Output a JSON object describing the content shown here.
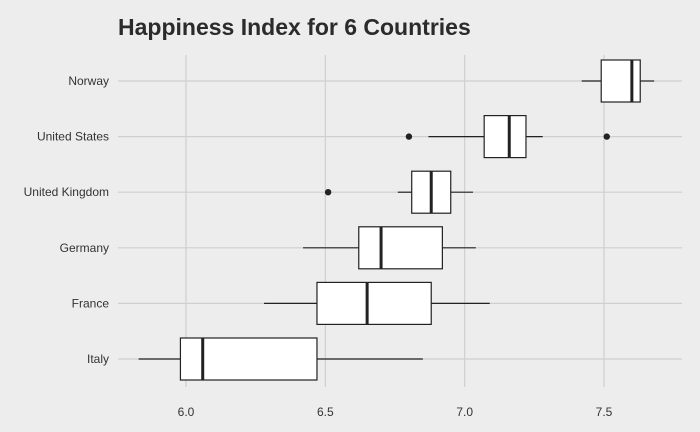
{
  "chart_data": {
    "type": "boxplot",
    "title": "Happiness Index for 6 Countries",
    "xlabel": "",
    "ylabel": "",
    "orientation": "horizontal",
    "xlim": [
      5.8,
      7.8
    ],
    "xticks": [
      6.0,
      6.5,
      7.0,
      7.5
    ],
    "xtick_labels": [
      "6.0",
      "6.5",
      "7.0",
      "7.5"
    ],
    "grid": true,
    "background": "#ededed",
    "grid_color": "#cfcfcf",
    "box_fill": "#ffffff",
    "line_color": "#222222",
    "categories": [
      "Norway",
      "United States",
      "United Kingdom",
      "Germany",
      "France",
      "Italy"
    ],
    "boxes": [
      {
        "category": "Norway",
        "whisker_low": 7.42,
        "q1": 7.49,
        "median": 7.6,
        "q3": 7.63,
        "whisker_high": 7.68,
        "outliers": []
      },
      {
        "category": "United States",
        "whisker_low": 6.87,
        "q1": 7.07,
        "median": 7.16,
        "q3": 7.22,
        "whisker_high": 7.28,
        "outliers": [
          6.8,
          7.51
        ]
      },
      {
        "category": "United Kingdom",
        "whisker_low": 6.76,
        "q1": 6.81,
        "median": 6.88,
        "q3": 6.95,
        "whisker_high": 7.03,
        "outliers": [
          6.51
        ]
      },
      {
        "category": "Germany",
        "whisker_low": 6.42,
        "q1": 6.62,
        "median": 6.7,
        "q3": 6.92,
        "whisker_high": 7.04,
        "outliers": []
      },
      {
        "category": "France",
        "whisker_low": 6.28,
        "q1": 6.47,
        "median": 6.65,
        "q3": 6.88,
        "whisker_high": 7.09,
        "outliers": []
      },
      {
        "category": "Italy",
        "whisker_low": 5.83,
        "q1": 5.98,
        "median": 6.06,
        "q3": 6.47,
        "whisker_high": 6.85,
        "outliers": []
      }
    ]
  }
}
